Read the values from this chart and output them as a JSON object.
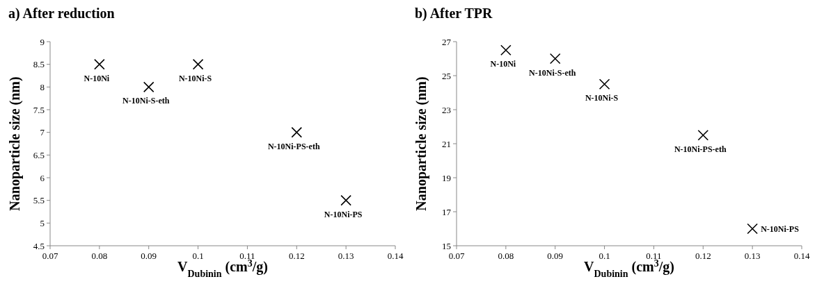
{
  "chart_data": [
    {
      "type": "scatter",
      "title": "a) After reduction",
      "xlabel": "V$_{Dubinin}$ (cm$^{3}$/g)",
      "ylabel": "Nanoparticle size (nm)",
      "x": [
        0.08,
        0.09,
        0.1,
        0.12,
        0.13
      ],
      "values": [
        8.5,
        8,
        8.5,
        7,
        5.5
      ],
      "color": "#000000",
      "marker": "cross",
      "xlim": [
        0.07,
        0.14
      ],
      "xticks": [
        0.07,
        0.08,
        0.09,
        0.1,
        0.11,
        0.12,
        0.13,
        0.14
      ],
      "ylim": [
        4.5,
        9
      ],
      "yticks": [
        4.5,
        5,
        5.5,
        6,
        6.5,
        7,
        7.5,
        8,
        8.5,
        9
      ],
      "grid": false,
      "annotations": [
        {
          "text": "N-10Ni",
          "x": 0.08,
          "y": 8.5
        },
        {
          "text": "N-10Ni-S-eth",
          "x": 0.09,
          "y": 8
        },
        {
          "text": "N-10Ni-S",
          "x": 0.1,
          "y": 8.5
        },
        {
          "text": "N-10Ni-PS-eth",
          "x": 0.12,
          "y": 7
        },
        {
          "text": "N-10Ni-PS",
          "x": 0.13,
          "y": 5.5
        }
      ]
    },
    {
      "type": "scatter",
      "title": "b) After TPR",
      "xlabel": "V$_{Dubinin}$ (cm$^{3}$/g)",
      "ylabel": "Nanoparticle size (nm)",
      "x": [
        0.08,
        0.09,
        0.1,
        0.12,
        0.13
      ],
      "values": [
        26.5,
        26,
        24.5,
        21.5,
        16
      ],
      "color": "#000000",
      "marker": "cross",
      "xlim": [
        0.07,
        0.14
      ],
      "xticks": [
        0.07,
        0.08,
        0.09,
        0.1,
        0.11,
        0.12,
        0.13,
        0.14
      ],
      "ylim": [
        15,
        27
      ],
      "yticks": [
        15,
        17,
        19,
        21,
        23,
        25,
        27
      ],
      "grid": false,
      "annotations": [
        {
          "text": "N-10Ni",
          "x": 0.08,
          "y": 26.5
        },
        {
          "text": "N-10Ni-S-eth",
          "x": 0.09,
          "y": 26
        },
        {
          "text": "N-10Ni-S",
          "x": 0.1,
          "y": 24.5
        },
        {
          "text": "N-10Ni-PS-eth",
          "x": 0.12,
          "y": 21.5
        },
        {
          "text": "N-10Ni-PS",
          "x": 0.13,
          "y": 16
        }
      ]
    }
  ]
}
